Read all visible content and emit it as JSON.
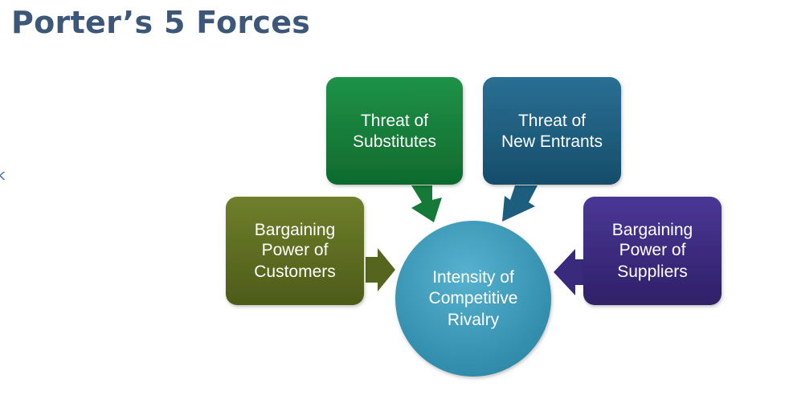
{
  "title": "Porter’s 5 Forces",
  "stray_text": "k",
  "diagram": {
    "center": {
      "lines": [
        "Intensity of",
        "Competitive",
        "Rivalry"
      ],
      "color": "#3b98b6"
    },
    "forces": [
      {
        "id": "substitutes",
        "lines": [
          "Threat of",
          "Substitutes"
        ],
        "color": "#167c3a"
      },
      {
        "id": "new-entrants",
        "lines": [
          "Threat of",
          "New Entrants"
        ],
        "color": "#1d5e7f"
      },
      {
        "id": "customers",
        "lines": [
          "Bargaining",
          "Power of",
          "Customers"
        ],
        "color": "#5e6d22"
      },
      {
        "id": "suppliers",
        "lines": [
          "Bargaining",
          "Power of",
          "Suppliers"
        ],
        "color": "#3b2a7d"
      }
    ]
  }
}
